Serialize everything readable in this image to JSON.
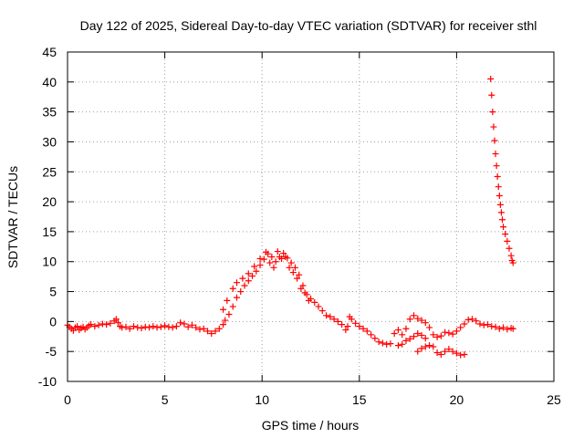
{
  "chart_data": {
    "type": "scatter",
    "title": "Day 122 of 2025, Sidereal Day-to-day VTEC variation (SDTVAR) for receiver sthl",
    "xlabel": "GPS time / hours",
    "ylabel": "SDTVAR / TECUs",
    "xlim": [
      0,
      25
    ],
    "ylim": [
      -10,
      45
    ],
    "xticks": [
      0,
      5,
      10,
      15,
      20,
      25
    ],
    "yticks": [
      -10,
      -5,
      0,
      5,
      10,
      15,
      20,
      25,
      30,
      35,
      40,
      45
    ],
    "grid": true,
    "marker": "plus",
    "color": "#ff0000",
    "series": [
      {
        "name": "SDTVAR",
        "points": [
          [
            0.0,
            -0.6
          ],
          [
            0.1,
            -0.9
          ],
          [
            0.2,
            -1.2
          ],
          [
            0.3,
            -1.5
          ],
          [
            0.4,
            -1.0
          ],
          [
            0.5,
            -0.8
          ],
          [
            0.6,
            -1.4
          ],
          [
            0.7,
            -1.1
          ],
          [
            0.8,
            -0.9
          ],
          [
            0.9,
            -1.3
          ],
          [
            1.0,
            -1.0
          ],
          [
            1.1,
            -0.7
          ],
          [
            1.2,
            -0.5
          ],
          [
            1.4,
            -0.8
          ],
          [
            1.6,
            -0.6
          ],
          [
            1.8,
            -0.4
          ],
          [
            2.0,
            -0.5
          ],
          [
            2.2,
            -0.3
          ],
          [
            2.4,
            0.1
          ],
          [
            2.5,
            0.4
          ],
          [
            2.6,
            -0.2
          ],
          [
            2.7,
            -0.8
          ],
          [
            2.8,
            -1.0
          ],
          [
            3.0,
            -0.9
          ],
          [
            3.2,
            -1.2
          ],
          [
            3.4,
            -0.8
          ],
          [
            3.6,
            -1.0
          ],
          [
            3.8,
            -1.1
          ],
          [
            4.0,
            -0.9
          ],
          [
            4.2,
            -1.0
          ],
          [
            4.4,
            -0.8
          ],
          [
            4.6,
            -1.0
          ],
          [
            4.8,
            -0.9
          ],
          [
            5.0,
            -0.7
          ],
          [
            5.2,
            -0.9
          ],
          [
            5.4,
            -1.0
          ],
          [
            5.6,
            -0.8
          ],
          [
            5.8,
            -0.2
          ],
          [
            6.0,
            -0.4
          ],
          [
            6.2,
            -0.9
          ],
          [
            6.4,
            -0.6
          ],
          [
            6.6,
            -1.0
          ],
          [
            6.8,
            -1.3
          ],
          [
            7.0,
            -1.2
          ],
          [
            7.2,
            -1.6
          ],
          [
            7.4,
            -2.0
          ],
          [
            7.6,
            -1.6
          ],
          [
            7.8,
            -1.2
          ],
          [
            8.0,
            -0.5
          ],
          [
            8.1,
            0.2
          ],
          [
            8.3,
            1.2
          ],
          [
            8.5,
            2.5
          ],
          [
            8.7,
            4.0
          ],
          [
            8.9,
            5.0
          ],
          [
            9.1,
            6.0
          ],
          [
            9.3,
            6.8
          ],
          [
            9.5,
            7.6
          ],
          [
            9.7,
            8.4
          ],
          [
            9.9,
            9.4
          ],
          [
            10.1,
            10.4
          ],
          [
            10.3,
            11.3
          ],
          [
            10.5,
            10.8
          ],
          [
            10.7,
            10.0
          ],
          [
            10.9,
            10.8
          ],
          [
            11.1,
            11.4
          ],
          [
            11.3,
            10.6
          ],
          [
            11.5,
            9.8
          ],
          [
            11.7,
            9.0
          ],
          [
            11.9,
            7.8
          ],
          [
            12.1,
            6.0
          ],
          [
            12.3,
            4.5
          ],
          [
            12.5,
            3.8
          ],
          [
            12.7,
            3.2
          ],
          [
            12.9,
            2.5
          ],
          [
            13.1,
            1.8
          ],
          [
            13.3,
            1.0
          ],
          [
            13.5,
            0.8
          ],
          [
            13.7,
            0.4
          ],
          [
            13.9,
            0.0
          ],
          [
            14.1,
            -0.5
          ],
          [
            14.3,
            -1.4
          ],
          [
            14.4,
            -0.8
          ],
          [
            14.5,
            0.8
          ],
          [
            14.6,
            0.4
          ],
          [
            14.8,
            -0.3
          ],
          [
            15.0,
            -0.8
          ],
          [
            15.2,
            -1.2
          ],
          [
            15.4,
            -1.6
          ],
          [
            15.6,
            -2.2
          ],
          [
            15.8,
            -2.8
          ],
          [
            16.0,
            -3.4
          ],
          [
            16.2,
            -3.6
          ],
          [
            16.4,
            -3.8
          ],
          [
            16.6,
            -3.7
          ],
          [
            16.8,
            -2.0
          ],
          [
            17.0,
            -1.4
          ],
          [
            17.2,
            -2.2
          ],
          [
            17.4,
            -1.2
          ],
          [
            17.6,
            0.4
          ],
          [
            17.8,
            1.0
          ],
          [
            18.0,
            0.5
          ],
          [
            18.2,
            0.2
          ],
          [
            18.4,
            -0.2
          ],
          [
            18.6,
            -1.0
          ],
          [
            18.8,
            -2.2
          ],
          [
            19.0,
            -2.6
          ],
          [
            19.2,
            -2.4
          ],
          [
            19.4,
            -1.8
          ],
          [
            19.6,
            -1.9
          ],
          [
            19.8,
            -2.1
          ],
          [
            20.0,
            -1.6
          ],
          [
            20.2,
            -1.0
          ],
          [
            20.4,
            -0.4
          ],
          [
            20.6,
            0.3
          ],
          [
            20.8,
            0.4
          ],
          [
            21.0,
            0.1
          ],
          [
            21.2,
            -0.4
          ],
          [
            21.4,
            -0.6
          ],
          [
            21.6,
            -0.5
          ],
          [
            21.8,
            -0.8
          ],
          [
            22.0,
            -0.9
          ],
          [
            22.2,
            -1.2
          ],
          [
            22.4,
            -1.0
          ],
          [
            22.6,
            -1.3
          ],
          [
            22.8,
            -1.1
          ],
          [
            22.9,
            -1.2
          ],
          [
            18.0,
            -5.0
          ],
          [
            18.2,
            -4.5
          ],
          [
            18.4,
            -4.2
          ],
          [
            18.6,
            -4.0
          ],
          [
            18.8,
            -4.2
          ],
          [
            19.0,
            -5.2
          ],
          [
            19.2,
            -5.5
          ],
          [
            19.4,
            -5.0
          ],
          [
            19.6,
            -4.6
          ],
          [
            19.8,
            -5.0
          ],
          [
            20.0,
            -5.3
          ],
          [
            20.2,
            -5.6
          ],
          [
            20.4,
            -5.5
          ],
          [
            17.0,
            -4.0
          ],
          [
            17.2,
            -3.8
          ],
          [
            17.4,
            -3.2
          ],
          [
            17.6,
            -2.9
          ],
          [
            17.8,
            -2.5
          ],
          [
            18.0,
            -2.0
          ],
          [
            18.2,
            -2.3
          ],
          [
            18.4,
            -2.8
          ],
          [
            8.0,
            2.0
          ],
          [
            8.2,
            3.5
          ],
          [
            8.5,
            5.5
          ],
          [
            8.7,
            6.5
          ],
          [
            9.0,
            7.2
          ],
          [
            9.3,
            8.0
          ],
          [
            9.6,
            9.2
          ],
          [
            9.9,
            10.5
          ],
          [
            10.2,
            11.6
          ],
          [
            10.4,
            9.8
          ],
          [
            10.6,
            9.0
          ],
          [
            10.8,
            11.7
          ],
          [
            11.0,
            10.5
          ],
          [
            11.2,
            10.8
          ],
          [
            11.4,
            9.0
          ],
          [
            11.6,
            8.2
          ],
          [
            11.8,
            7.2
          ],
          [
            12.0,
            5.5
          ],
          [
            12.2,
            4.8
          ],
          [
            12.4,
            3.5
          ],
          [
            21.75,
            40.5
          ],
          [
            21.8,
            37.8
          ],
          [
            21.85,
            35.0
          ],
          [
            21.9,
            32.5
          ],
          [
            21.95,
            30.2
          ],
          [
            22.0,
            28.0
          ],
          [
            22.05,
            26.0
          ],
          [
            22.1,
            24.2
          ],
          [
            22.15,
            22.5
          ],
          [
            22.2,
            21.0
          ],
          [
            22.25,
            19.5
          ],
          [
            22.3,
            18.2
          ],
          [
            22.35,
            17.0
          ],
          [
            22.4,
            15.8
          ],
          [
            22.5,
            14.6
          ],
          [
            22.6,
            13.4
          ],
          [
            22.7,
            12.2
          ],
          [
            22.8,
            11.0
          ],
          [
            22.85,
            10.2
          ],
          [
            22.9,
            9.8
          ]
        ]
      }
    ]
  }
}
